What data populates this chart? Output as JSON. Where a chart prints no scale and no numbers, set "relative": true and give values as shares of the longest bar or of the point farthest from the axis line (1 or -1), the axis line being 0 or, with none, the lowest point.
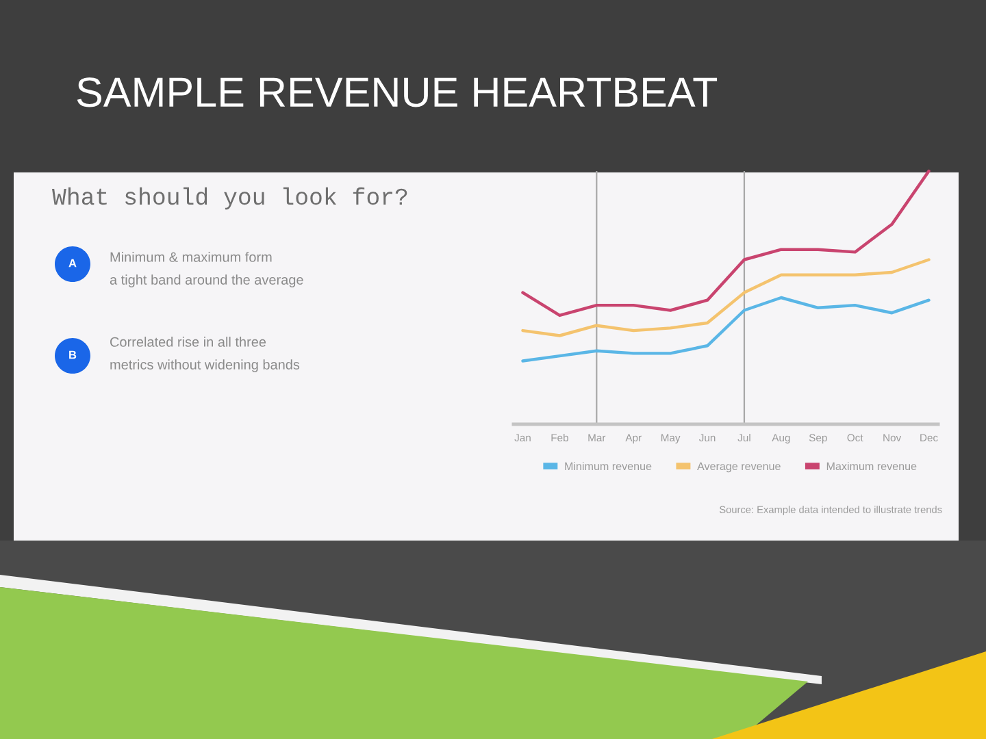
{
  "chart_data": {
    "type": "line",
    "title": "SAMPLE REVENUE HEARTBEAT",
    "relative": true,
    "categories": [
      "Jan",
      "Feb",
      "Mar",
      "Apr",
      "May",
      "Jun",
      "Jul",
      "Aug",
      "Sep",
      "Oct",
      "Nov",
      "Dec"
    ],
    "series": [
      {
        "name": "Minimum revenue",
        "color": "#5ab6e6",
        "values": [
          0.25,
          0.27,
          0.29,
          0.28,
          0.28,
          0.31,
          0.45,
          0.5,
          0.46,
          0.47,
          0.44,
          0.49
        ]
      },
      {
        "name": "Average revenue",
        "color": "#f4c36e",
        "values": [
          0.37,
          0.35,
          0.39,
          0.37,
          0.38,
          0.4,
          0.52,
          0.59,
          0.59,
          0.59,
          0.6,
          0.65
        ]
      },
      {
        "name": "Maximum revenue",
        "color": "#c9446f",
        "values": [
          0.52,
          0.43,
          0.47,
          0.47,
          0.45,
          0.49,
          0.65,
          0.69,
          0.69,
          0.68,
          0.79,
          1.0
        ]
      }
    ],
    "ref_lines": [
      {
        "axis": "x",
        "value": "Mar",
        "color": "#a8a8a8"
      },
      {
        "axis": "x",
        "value": "Jul",
        "color": "#a8a8a8"
      }
    ],
    "line_style": "solid",
    "legend": "bottom",
    "annotations": [
      "What should you look for?",
      "A",
      "Minimum & maximum form\na tight band around the average",
      "B",
      "Correlated rise in all three\nmetrics without widening bands",
      "Source: Example data intended to illustrate trends"
    ]
  }
}
